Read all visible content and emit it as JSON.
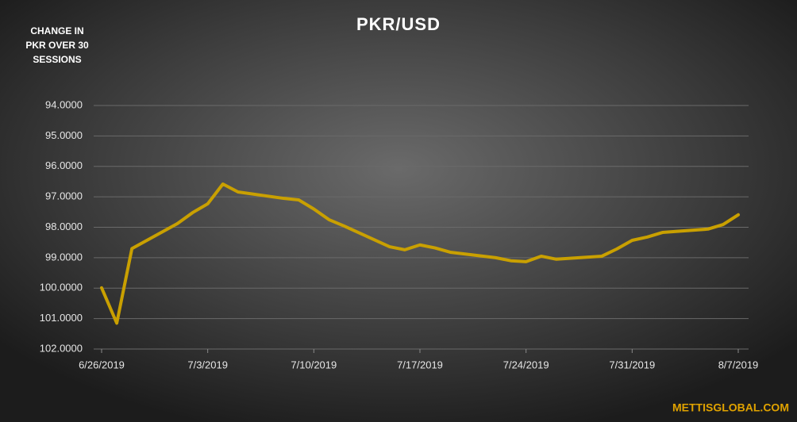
{
  "chart_data": {
    "type": "line",
    "title": "PKR/USD",
    "annotation_lines": [
      "CHANGE IN",
      "PKR OVER 30",
      "SESSIONS"
    ],
    "source": "METTISGLOBAL.COM",
    "x": [
      "6/26/2019",
      "6/27/2019",
      "6/28/2019",
      "7/1/2019",
      "7/2/2019",
      "7/3/2019",
      "7/4/2019",
      "7/5/2019",
      "7/8/2019",
      "7/9/2019",
      "7/10/2019",
      "7/11/2019",
      "7/12/2019",
      "7/15/2019",
      "7/16/2019",
      "7/17/2019",
      "7/18/2019",
      "7/19/2019",
      "7/22/2019",
      "7/23/2019",
      "7/24/2019",
      "7/25/2019",
      "7/26/2019",
      "7/29/2019",
      "7/30/2019",
      "7/31/2019",
      "8/1/2019",
      "8/2/2019",
      "8/5/2019",
      "8/6/2019",
      "8/7/2019"
    ],
    "series": [
      {
        "name": "PKR/USD",
        "color": "#c9a000",
        "values": [
          99.99,
          101.15,
          98.7,
          97.88,
          97.52,
          97.23,
          96.58,
          96.84,
          97.05,
          97.1,
          97.4,
          97.75,
          97.96,
          98.64,
          98.74,
          98.58,
          98.68,
          98.82,
          99.0,
          99.1,
          99.13,
          98.95,
          99.05,
          98.95,
          98.71,
          98.43,
          98.32,
          98.17,
          98.06,
          97.91,
          97.59
        ]
      }
    ],
    "xlim": [
      "6/26/2019",
      "8/7/2019"
    ],
    "xticks": [
      "6/26/2019",
      "7/3/2019",
      "7/10/2019",
      "7/17/2019",
      "7/24/2019",
      "7/31/2019",
      "8/7/2019"
    ],
    "ylim": [
      94,
      102
    ],
    "y_inverted": true,
    "yticks": [
      {
        "value": 94,
        "label": "94.0000"
      },
      {
        "value": 95,
        "label": "95.0000"
      },
      {
        "value": 96,
        "label": "96.0000"
      },
      {
        "value": 97,
        "label": "97.0000"
      },
      {
        "value": 98,
        "label": "98.0000"
      },
      {
        "value": 99,
        "label": "99.0000"
      },
      {
        "value": 100,
        "label": "100.0000"
      },
      {
        "value": 101,
        "label": "101.0000"
      },
      {
        "value": 102,
        "label": "102.0000"
      }
    ],
    "grid": true
  }
}
